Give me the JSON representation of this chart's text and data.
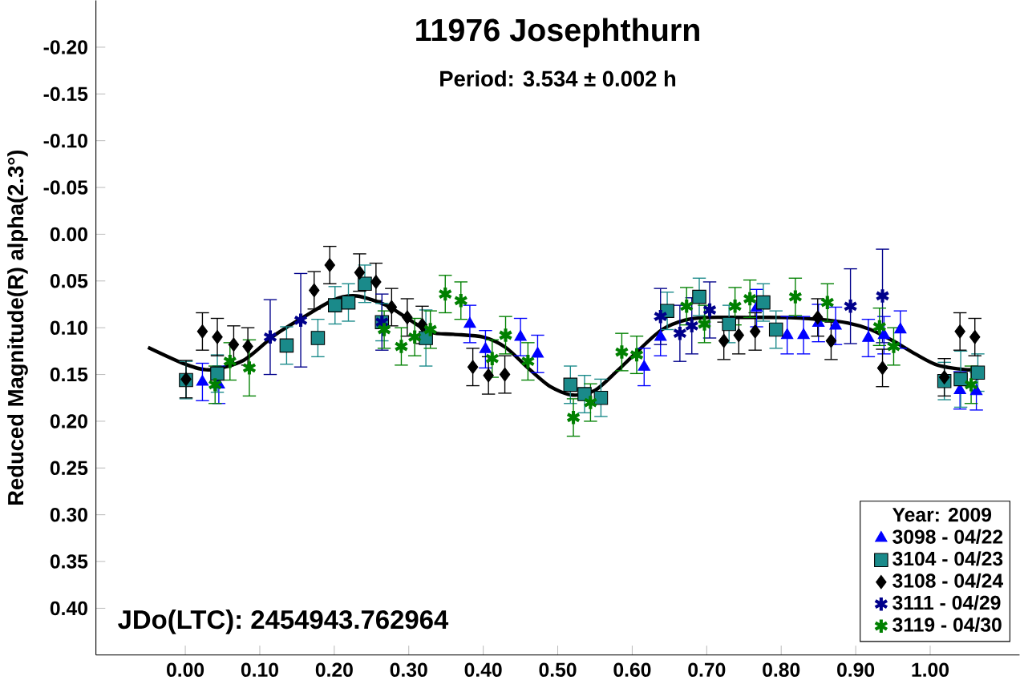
{
  "chart_data": {
    "type": "scatter",
    "title": "11976 Josephthurn",
    "subtitle": "Period: 3.534 ± 0.002 h",
    "ylabel": "Reduced Magnitude(R) alpha(2.3°)",
    "legend_title": "Year: 2009",
    "annotations": [
      "JDo(LTC): 2454943.762964"
    ],
    "xlim": [
      -0.12,
      1.12
    ],
    "ylim": [
      0.45,
      -0.25
    ],
    "xticks": [
      {
        "value": 0,
        "label": "0.00"
      },
      {
        "value": 0.1,
        "label": "0.10"
      },
      {
        "value": 0.2,
        "label": "0.20"
      },
      {
        "value": 0.3,
        "label": "0.30"
      },
      {
        "value": 0.4,
        "label": "0.40"
      },
      {
        "value": 0.5,
        "label": "0.50"
      },
      {
        "value": 0.6,
        "label": "0.60"
      },
      {
        "value": 0.7,
        "label": "0.70"
      },
      {
        "value": 0.8,
        "label": "0.80"
      },
      {
        "value": 0.9,
        "label": "0.90"
      },
      {
        "value": 1.0,
        "label": "1.00"
      }
    ],
    "yticks": [
      {
        "value": -0.2,
        "label": "-0.20"
      },
      {
        "value": -0.15,
        "label": "-0.15"
      },
      {
        "value": -0.1,
        "label": "-0.10"
      },
      {
        "value": -0.05,
        "label": "-0.05"
      },
      {
        "value": 0,
        "label": "0.00"
      },
      {
        "value": 0.05,
        "label": "0.05"
      },
      {
        "value": 0.1,
        "label": "0.10"
      },
      {
        "value": 0.15,
        "label": "0.15"
      },
      {
        "value": 0.2,
        "label": "0.20"
      },
      {
        "value": 0.25,
        "label": "0.25"
      },
      {
        "value": 0.3,
        "label": "0.30"
      },
      {
        "value": 0.35,
        "label": "0.35"
      },
      {
        "value": 0.4,
        "label": "0.40"
      }
    ],
    "grid": false,
    "legend": "bottom right",
    "series": [
      {
        "type": "line",
        "color": "#000000",
        "marker": "none",
        "x": [
          -0.05,
          0.0,
          0.033,
          0.078,
          0.12,
          0.16,
          0.2,
          0.23,
          0.27,
          0.3,
          0.33,
          0.36,
          0.4,
          0.43,
          0.46,
          0.49,
          0.52,
          0.55,
          0.58,
          0.61,
          0.64,
          0.67,
          0.7,
          0.75,
          0.8,
          0.85,
          0.89,
          0.92,
          0.95,
          0.98,
          1.01,
          1.05,
          1.07
        ],
        "values": [
          0.121,
          0.139,
          0.145,
          0.135,
          0.108,
          0.088,
          0.07,
          0.066,
          0.076,
          0.091,
          0.105,
          0.107,
          0.11,
          0.121,
          0.143,
          0.163,
          0.172,
          0.167,
          0.146,
          0.123,
          0.102,
          0.092,
          0.089,
          0.089,
          0.089,
          0.091,
          0.095,
          0.102,
          0.114,
          0.128,
          0.14,
          0.145,
          0.143
        ]
      },
      {
        "name": "3098 - 04/22",
        "color": "#0000ff",
        "marker": "triangle",
        "x": [
          0.023,
          0.045,
          0.382,
          0.403,
          0.45,
          0.473,
          0.616,
          0.638,
          0.767,
          0.808,
          0.83,
          0.85,
          0.873,
          0.917,
          0.938,
          0.96,
          1.04,
          1.062
        ],
        "values": [
          0.158,
          0.161,
          0.096,
          0.123,
          0.11,
          0.128,
          0.142,
          0.11,
          0.079,
          0.108,
          0.108,
          0.095,
          0.098,
          0.111,
          0.108,
          0.102,
          0.167,
          0.168
        ],
        "errors": [
          0.02,
          0.02,
          0.02,
          0.02,
          0.02,
          0.02,
          0.02,
          0.02,
          0.02,
          0.02,
          0.02,
          0.02,
          0.02,
          0.02,
          0.02,
          0.02,
          0.02,
          0.02
        ]
      },
      {
        "name": "3104 - 04/23",
        "color": "#1a8a8a",
        "marker": "square",
        "x": [
          0.001,
          0.043,
          0.136,
          0.178,
          0.201,
          0.219,
          0.241,
          0.264,
          0.323,
          0.517,
          0.536,
          0.558,
          0.647,
          0.69,
          0.73,
          0.776,
          0.793,
          1.019,
          1.041,
          1.064
        ],
        "values": [
          0.156,
          0.149,
          0.119,
          0.111,
          0.076,
          0.073,
          0.053,
          0.094,
          0.111,
          0.161,
          0.171,
          0.175,
          0.082,
          0.067,
          0.096,
          0.073,
          0.102,
          0.157,
          0.155,
          0.148
        ],
        "errors": [
          0.02,
          0.02,
          0.02,
          0.02,
          0.02,
          0.02,
          0.02,
          0.02,
          0.03,
          0.02,
          0.02,
          0.02,
          0.02,
          0.02,
          0.02,
          0.02,
          0.02,
          0.02,
          0.03,
          0.02
        ]
      },
      {
        "name": "3108 - 04/24",
        "color": "#000000",
        "marker": "diamond",
        "x": [
          0.001,
          0.023,
          0.043,
          0.065,
          0.084,
          0.173,
          0.194,
          0.234,
          0.256,
          0.277,
          0.298,
          0.318,
          0.386,
          0.407,
          0.429,
          0.723,
          0.743,
          0.765,
          0.849,
          0.867,
          0.936,
          1.019,
          1.04,
          1.06
        ],
        "values": [
          0.155,
          0.104,
          0.11,
          0.118,
          0.12,
          0.06,
          0.033,
          0.041,
          0.051,
          0.078,
          0.089,
          0.097,
          0.142,
          0.151,
          0.15,
          0.114,
          0.108,
          0.104,
          0.089,
          0.114,
          0.143,
          0.153,
          0.104,
          0.11
        ],
        "errors": [
          0.02,
          0.02,
          0.02,
          0.02,
          0.02,
          0.02,
          0.02,
          0.02,
          0.02,
          0.02,
          0.02,
          0.02,
          0.02,
          0.02,
          0.02,
          0.02,
          0.02,
          0.02,
          0.02,
          0.02,
          0.02,
          0.02,
          0.02,
          0.02
        ]
      },
      {
        "name": "3111 - 04/29",
        "color": "#00008b",
        "marker": "cross",
        "x": [
          0.114,
          0.155,
          0.264,
          0.638,
          0.664,
          0.68,
          0.704,
          0.893,
          0.936
        ],
        "values": [
          0.11,
          0.092,
          0.094,
          0.088,
          0.106,
          0.098,
          0.081,
          0.077,
          0.066
        ],
        "errors": [
          0.04,
          0.05,
          0.03,
          0.03,
          0.03,
          0.03,
          0.03,
          0.04,
          0.05
        ]
      },
      {
        "name": "3119 - 04/30",
        "color": "#008000",
        "marker": "cross",
        "x": [
          0.04,
          0.06,
          0.086,
          0.267,
          0.29,
          0.308,
          0.329,
          0.349,
          0.37,
          0.412,
          0.43,
          0.46,
          0.521,
          0.544,
          0.586,
          0.606,
          0.673,
          0.697,
          0.738,
          0.758,
          0.819,
          0.862,
          0.932,
          0.951,
          1.055
        ],
        "values": [
          0.161,
          0.136,
          0.143,
          0.102,
          0.12,
          0.11,
          0.102,
          0.064,
          0.071,
          0.133,
          0.108,
          0.136,
          0.196,
          0.18,
          0.126,
          0.129,
          0.077,
          0.096,
          0.077,
          0.069,
          0.067,
          0.073,
          0.099,
          0.12,
          0.161
        ],
        "errors": [
          0.02,
          0.02,
          0.03,
          0.02,
          0.02,
          0.02,
          0.02,
          0.02,
          0.02,
          0.02,
          0.02,
          0.02,
          0.02,
          0.02,
          0.02,
          0.02,
          0.02,
          0.02,
          0.02,
          0.02,
          0.02,
          0.02,
          0.02,
          0.02,
          0.02
        ]
      }
    ]
  }
}
